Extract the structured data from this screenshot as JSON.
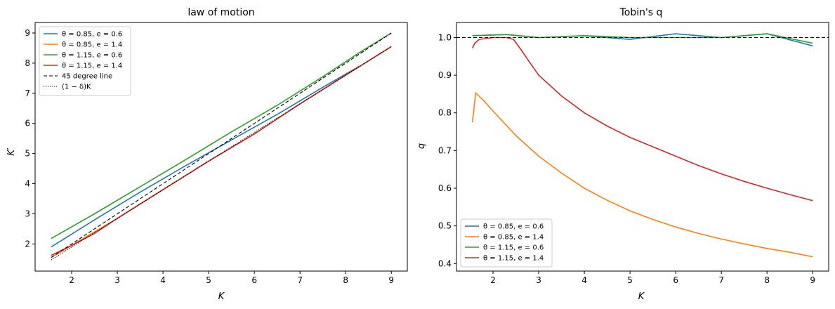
{
  "chart_data": [
    {
      "type": "line",
      "title": "law of motion",
      "xlabel": "K",
      "ylabel": "K′",
      "xlim": [
        1.2,
        9.35
      ],
      "ylim": [
        1.1,
        9.35
      ],
      "xticks": [
        2,
        3,
        4,
        5,
        6,
        7,
        8,
        9
      ],
      "yticks": [
        2,
        3,
        4,
        5,
        6,
        7,
        8,
        9
      ],
      "legend_position": "top-left",
      "series": [
        {
          "name": "θ = 0.85, e = 0.6",
          "color": "#1f77b4",
          "dash": "",
          "x": [
            1.55,
            2.5,
            3.5,
            4.5,
            5.5,
            6.5,
            7.5,
            8.3
          ],
          "y": [
            1.9,
            2.8,
            3.72,
            4.6,
            5.45,
            6.3,
            7.2,
            7.9
          ]
        },
        {
          "name": "θ = 0.85, e = 1.4",
          "color": "#ff7f0e",
          "dash": "",
          "x": [
            1.55,
            2.0,
            3.0,
            4.0,
            5.0,
            6.0,
            7.0,
            8.0,
            9.0
          ],
          "y": [
            1.55,
            1.95,
            2.85,
            3.8,
            4.75,
            5.65,
            6.65,
            7.6,
            8.55
          ]
        },
        {
          "name": "θ = 1.15, e = 0.6",
          "color": "#2ca02c",
          "dash": "",
          "x": [
            1.55,
            2.5,
            3.5,
            4.5,
            5.5,
            6.5,
            7.5,
            8.3,
            9.0
          ],
          "y": [
            2.18,
            3.0,
            3.9,
            4.8,
            5.72,
            6.6,
            7.55,
            8.35,
            9.0
          ]
        },
        {
          "name": "θ = 1.15, e = 1.4",
          "color": "#d62728",
          "dash": "",
          "x": [
            1.55,
            2.0,
            2.5,
            3.0,
            4.0,
            5.0,
            6.0,
            7.0,
            8.0,
            9.0
          ],
          "y": [
            1.62,
            1.95,
            2.35,
            2.85,
            3.8,
            4.75,
            5.65,
            6.65,
            7.6,
            8.55
          ]
        },
        {
          "name": "45 degree line",
          "color": "#000000",
          "dash": "5,3",
          "x": [
            1.55,
            9.0
          ],
          "y": [
            1.55,
            9.0
          ]
        },
        {
          "name": "(1 − δ)K",
          "color": "#000000",
          "dash": "1.2,1.8",
          "x": [
            1.55,
            9.0
          ],
          "y": [
            1.47,
            8.55
          ]
        }
      ]
    },
    {
      "type": "line",
      "title": "Tobin's q",
      "xlabel": "K",
      "ylabel": "q",
      "xlim": [
        1.2,
        9.35
      ],
      "ylim": [
        0.38,
        1.04
      ],
      "xticks": [
        2,
        3,
        4,
        5,
        6,
        7,
        8,
        9
      ],
      "yticks": [
        0.4,
        0.5,
        0.6,
        0.7,
        0.8,
        0.9,
        1.0
      ],
      "ytick_labels": [
        "0.4",
        "0.5",
        "0.6",
        "0.7",
        "0.8",
        "0.9",
        "1.0"
      ],
      "reference_line": {
        "y": 1.0,
        "color": "#000000",
        "dash": "5,3"
      },
      "legend_position": "bottom-left",
      "series": [
        {
          "name": "θ = 0.85, e = 0.6",
          "color": "#1f77b4",
          "x": [
            1.55,
            2.3,
            3.0,
            4.0,
            5.0,
            6.0,
            7.0,
            8.0,
            9.0
          ],
          "y": [
            1.005,
            1.008,
            1.0,
            1.005,
            0.995,
            1.01,
            1.0,
            1.01,
            0.978
          ]
        },
        {
          "name": "θ = 0.85, e = 1.4",
          "color": "#ff7f0e",
          "x": [
            1.55,
            1.62,
            1.8,
            2.0,
            2.5,
            3.0,
            3.5,
            4.0,
            4.5,
            5.0,
            5.5,
            6.0,
            6.5,
            7.0,
            7.5,
            8.0,
            8.5,
            9.0
          ],
          "y": [
            0.775,
            0.853,
            0.832,
            0.805,
            0.74,
            0.685,
            0.64,
            0.6,
            0.568,
            0.54,
            0.517,
            0.497,
            0.48,
            0.465,
            0.452,
            0.44,
            0.43,
            0.418
          ]
        },
        {
          "name": "θ = 1.15, e = 0.6",
          "color": "#2ca02c",
          "x": [
            1.55,
            2.3,
            3.0,
            4.0,
            5.0,
            6.0,
            7.0,
            8.0,
            9.0
          ],
          "y": [
            1.005,
            1.008,
            1.0,
            1.005,
            1.0,
            1.0,
            1.0,
            1.01,
            0.985
          ]
        },
        {
          "name": "θ = 1.15, e = 1.4",
          "color": "#d62728",
          "x": [
            1.55,
            1.6,
            1.7,
            2.0,
            2.3,
            2.45,
            2.6,
            2.8,
            3.0,
            3.5,
            4.0,
            4.5,
            5.0,
            5.5,
            6.0,
            6.5,
            7.0,
            7.5,
            8.0,
            8.5,
            9.0
          ],
          "y": [
            0.972,
            0.985,
            0.995,
            1.0,
            1.0,
            0.995,
            0.97,
            0.935,
            0.9,
            0.845,
            0.8,
            0.765,
            0.735,
            0.71,
            0.685,
            0.66,
            0.638,
            0.618,
            0.6,
            0.583,
            0.567
          ]
        }
      ]
    }
  ]
}
